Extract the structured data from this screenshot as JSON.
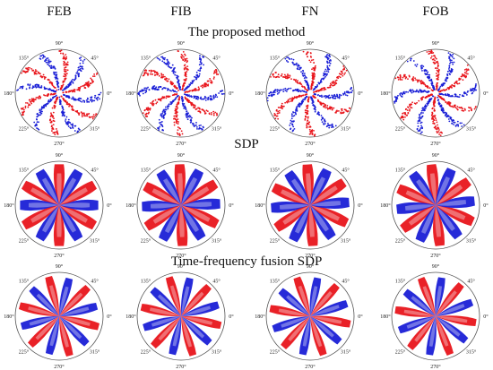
{
  "columns": [
    "FEB",
    "FIB",
    "FN",
    "FOB"
  ],
  "rows": [
    {
      "title": "The proposed method",
      "style": "scatter"
    },
    {
      "title": "SDP",
      "style": "petal"
    },
    {
      "title": "Time-frequency fusion SDP",
      "style": "petal"
    }
  ],
  "angle_labels": [
    "0°",
    "45°",
    "90°",
    "135°",
    "180°",
    "225°",
    "270°",
    "315°"
  ],
  "colors": {
    "red": "#e8151b",
    "blue": "#1a1fd6",
    "frame": "#555555"
  },
  "symmetry": 6
}
